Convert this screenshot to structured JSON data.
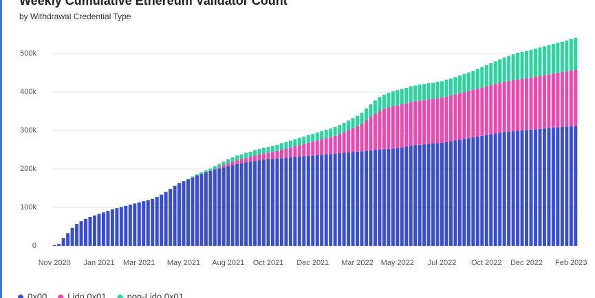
{
  "chart_data": {
    "type": "stacked-bar",
    "title": "Weekly Cumulative Ethereum Validator Count",
    "subtitle": "by Withdrawal Credential Type",
    "categories": [
      "Nov 2020",
      null,
      null,
      null,
      null,
      null,
      null,
      null,
      null,
      null,
      "Jan 2021",
      null,
      null,
      null,
      null,
      null,
      null,
      null,
      null,
      "Mar 2021",
      null,
      null,
      null,
      null,
      null,
      null,
      null,
      null,
      null,
      "May 2021",
      null,
      null,
      null,
      null,
      null,
      null,
      null,
      null,
      null,
      "Aug 2021",
      null,
      null,
      null,
      null,
      null,
      null,
      null,
      null,
      "Oct 2021",
      null,
      null,
      null,
      null,
      null,
      null,
      null,
      null,
      null,
      "Dec 2021",
      null,
      null,
      null,
      null,
      null,
      null,
      null,
      null,
      null,
      "Mar 2022",
      null,
      null,
      null,
      null,
      null,
      null,
      null,
      null,
      "May 2022",
      null,
      null,
      null,
      null,
      null,
      null,
      null,
      null,
      null,
      "Jul 2022",
      null,
      null,
      null,
      null,
      null,
      null,
      null,
      null,
      null,
      "Oct 2022",
      null,
      null,
      null,
      null,
      null,
      null,
      null,
      null,
      "Dec 2022",
      null,
      null,
      null,
      null,
      null,
      null,
      null,
      null,
      null,
      "Feb 2023",
      null
    ],
    "series": [
      {
        "name": "0x00",
        "color": "#3a4fc9",
        "values": [
          2000,
          5000,
          20000,
          33000,
          47000,
          57000,
          64000,
          70000,
          75000,
          79000,
          83000,
          87000,
          91000,
          95000,
          98000,
          101000,
          104000,
          107000,
          110000,
          113000,
          116000,
          119000,
          122000,
          127000,
          133000,
          140000,
          148000,
          156000,
          163000,
          168000,
          173000,
          178000,
          183000,
          187000,
          191000,
          195000,
          198000,
          201000,
          204000,
          207000,
          210000,
          213000,
          215000,
          217000,
          219000,
          221000,
          223000,
          224000,
          225000,
          226000,
          227000,
          228000,
          229000,
          230000,
          231000,
          232000,
          233000,
          234000,
          235000,
          236000,
          237000,
          238000,
          239000,
          240000,
          241000,
          242000,
          243000,
          244000,
          245000,
          246000,
          247000,
          248000,
          249000,
          250000,
          251000,
          252000,
          253000,
          254000,
          256000,
          258000,
          260000,
          262000,
          263000,
          264000,
          265000,
          266000,
          267000,
          268000,
          270000,
          272000,
          274000,
          276000,
          278000,
          280000,
          282000,
          284000,
          286000,
          288000,
          290000,
          292000,
          294000,
          296000,
          297000,
          298000,
          299000,
          300000,
          301000,
          302000,
          303000,
          304000,
          305000,
          306000,
          307000,
          308000,
          309000,
          310000,
          311000,
          312000
        ]
      },
      {
        "name": "Lido 0x01",
        "color": "#e84bb0",
        "values": [
          0,
          0,
          0,
          0,
          0,
          0,
          0,
          0,
          0,
          0,
          0,
          0,
          0,
          0,
          0,
          0,
          0,
          0,
          0,
          0,
          0,
          0,
          0,
          0,
          0,
          0,
          0,
          0,
          0,
          0,
          0,
          0,
          0,
          0,
          0,
          0,
          2000,
          4000,
          6000,
          8000,
          9000,
          10000,
          11000,
          12000,
          13000,
          14000,
          15000,
          16000,
          17000,
          18000,
          20000,
          22000,
          24000,
          26000,
          28000,
          30000,
          32000,
          34000,
          36000,
          38000,
          40000,
          42000,
          44000,
          46000,
          50000,
          54000,
          58000,
          62000,
          66000,
          72000,
          80000,
          88000,
          95000,
          101000,
          105000,
          108000,
          110000,
          111000,
          112000,
          113000,
          114000,
          114000,
          115000,
          115000,
          116000,
          116000,
          117000,
          117000,
          118000,
          119000,
          120000,
          121000,
          122000,
          123000,
          124000,
          125000,
          126000,
          127000,
          128000,
          129000,
          130000,
          131000,
          132000,
          133000,
          134000,
          134000,
          135000,
          136000,
          137000,
          138000,
          139000,
          140000,
          141000,
          142000,
          143000,
          144000,
          145000,
          146000
        ]
      },
      {
        "name": "non-Lido 0x01",
        "color": "#2ed3a0",
        "values": [
          0,
          0,
          0,
          0,
          0,
          0,
          0,
          0,
          0,
          0,
          0,
          0,
          0,
          0,
          0,
          0,
          0,
          0,
          0,
          0,
          0,
          0,
          0,
          0,
          0,
          0,
          0,
          0,
          0,
          0,
          1000,
          2000,
          3000,
          4000,
          5000,
          6000,
          7000,
          8000,
          9000,
          10000,
          11000,
          12000,
          12000,
          13000,
          13000,
          14000,
          14000,
          15000,
          15000,
          16000,
          16000,
          17000,
          17000,
          18000,
          18000,
          19000,
          19000,
          20000,
          20000,
          21000,
          21000,
          22000,
          22000,
          23000,
          23000,
          24000,
          25000,
          26000,
          27000,
          28000,
          30000,
          32000,
          34000,
          36000,
          37000,
          38000,
          39000,
          40000,
          40000,
          40000,
          41000,
          41000,
          41000,
          42000,
          42000,
          42000,
          43000,
          43000,
          44000,
          44000,
          45000,
          46000,
          47000,
          48000,
          49000,
          51000,
          53000,
          55000,
          57000,
          59000,
          61000,
          63000,
          65000,
          67000,
          69000,
          70000,
          71000,
          72000,
          73000,
          74000,
          75000,
          76000,
          77000,
          78000,
          79000,
          80000,
          82000,
          83000
        ]
      }
    ],
    "ylim": [
      0,
      550000
    ],
    "yticks": [
      0,
      {
        "value": 100000,
        "label": "100k"
      },
      {
        "value": 200000,
        "label": "200k"
      },
      {
        "value": 300000,
        "label": "300k"
      },
      {
        "value": 400000,
        "label": "400k"
      },
      {
        "value": 500000,
        "label": "500k"
      }
    ],
    "grid": true
  }
}
